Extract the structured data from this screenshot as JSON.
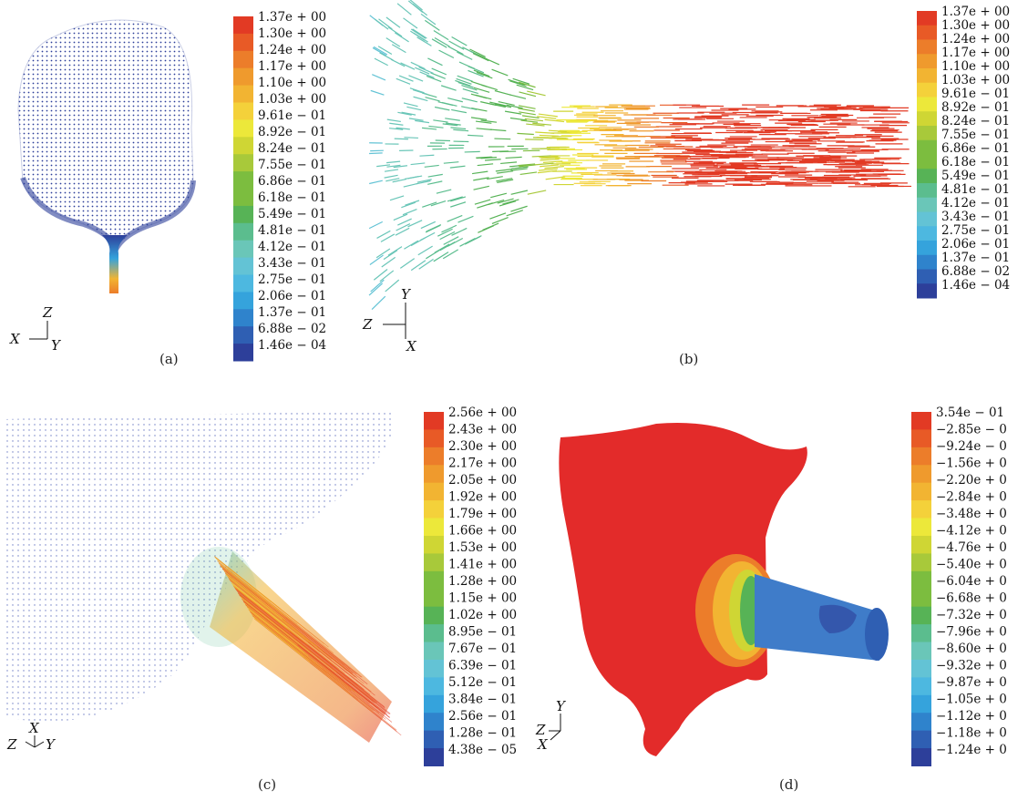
{
  "panels": [
    {
      "caption": "(a)",
      "colormap": [
        "#2d3f9a",
        "#2f5fb3",
        "#2f83cc",
        "#35a3dc",
        "#4db8e0",
        "#63c3d5",
        "#6ac6b8",
        "#5bbd8e",
        "#57b356",
        "#7cbd3f",
        "#a8c93a",
        "#cfd634",
        "#ece83a",
        "#f4d13a",
        "#f2b432",
        "#ef9a2d",
        "#ec7d2a",
        "#e85a26",
        "#e23a24"
      ],
      "legend": [
        "1.37e + 00",
        "1.30e + 00",
        "1.24e + 00",
        "1.17e + 00",
        "1.10e + 00",
        "1.03e + 00",
        "9.61e − 01",
        "8.92e − 01",
        "8.24e − 01",
        "7.55e − 01",
        "6.86e − 01",
        "6.18e − 01",
        "5.49e − 01",
        "4.81e − 01",
        "4.12e − 01",
        "3.43e − 01",
        "2.75e − 01",
        "2.06e − 01",
        "1.37e − 01",
        "6.88e − 02",
        "1.46e − 04"
      ],
      "axes": {
        "up": "Z",
        "left": "X",
        "right": "Y"
      }
    },
    {
      "caption": "(b)",
      "legend": [
        "1.37e + 00",
        "1.30e + 00",
        "1.24e + 00",
        "1.17e + 00",
        "1.10e + 00",
        "1.03e + 00",
        "9.61e − 01",
        "8.92e − 01",
        "8.24e − 01",
        "7.55e − 01",
        "6.86e − 01",
        "6.18e − 01",
        "5.49e − 01",
        "4.81e − 01",
        "4.12e − 01",
        "3.43e − 01",
        "2.75e − 01",
        "2.06e − 01",
        "1.37e − 01",
        "6.88e − 02",
        "1.46e − 04"
      ],
      "axes": {
        "up": "Y",
        "left": "Z",
        "down": "X"
      }
    },
    {
      "caption": "(c)",
      "legend": [
        "2.56e + 00",
        "2.43e + 00",
        "2.30e + 00",
        "2.17e + 00",
        "2.05e + 00",
        "1.92e + 00",
        "1.79e + 00",
        "1.66e + 00",
        "1.53e + 00",
        "1.41e + 00",
        "1.28e + 00",
        "1.15e + 00",
        "1.02e + 00",
        "8.95e − 01",
        "7.67e − 01",
        "6.39e − 01",
        "5.12e − 01",
        "3.84e − 01",
        "2.56e − 01",
        "1.28e − 01",
        "4.38e − 05"
      ],
      "axes": {
        "up": "X",
        "left": "Z",
        "right": "Y"
      }
    },
    {
      "caption": "(d)",
      "legend": [
        "3.54e − 01",
        "−2.85e − 0",
        "−9.24e − 0",
        "−1.56e + 0",
        "−2.20e + 0",
        "−2.84e + 0",
        "−3.48e + 0",
        "−4.12e + 0",
        "−4.76e + 0",
        "−5.40e + 0",
        "−6.04e + 0",
        "−6.68e + 0",
        "−7.32e + 0",
        "−7.96e + 0",
        "−8.60e + 0",
        "−9.32e + 0",
        "−9.87e + 0",
        "−1.05e + 0",
        "−1.12e + 0",
        "−1.18e + 0",
        "−1.24e + 0"
      ],
      "axes": {
        "up": "Y",
        "left": "Z",
        "down": "X"
      }
    }
  ]
}
